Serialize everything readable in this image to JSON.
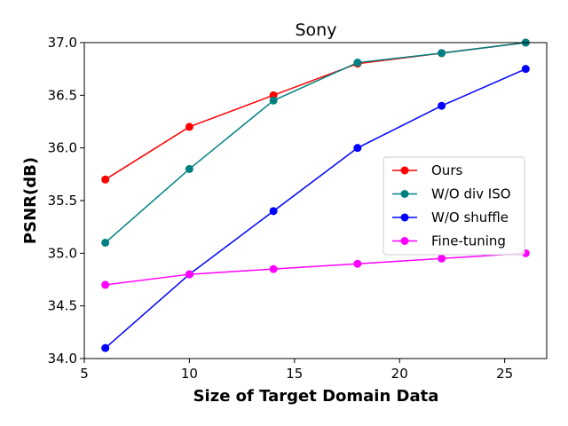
{
  "chart_data": {
    "type": "line",
    "title": "Sony",
    "xlabel": "Size of Target Domain Data",
    "ylabel": "PSNR(dB)",
    "xlim": [
      5,
      27
    ],
    "ylim": [
      34.0,
      37.0
    ],
    "xticks": [
      "5",
      "10",
      "15",
      "20",
      "25"
    ],
    "yticks": [
      "34.0",
      "34.5",
      "35.0",
      "35.5",
      "36.0",
      "36.5",
      "37.0"
    ],
    "grid": false,
    "legend_position": "center-right",
    "x": [
      6,
      10,
      14,
      18,
      22,
      26
    ],
    "series": [
      {
        "name": "Ours",
        "color": "#ff0000",
        "values": [
          35.7,
          36.2,
          36.5,
          36.8,
          36.9,
          37.0
        ]
      },
      {
        "name": "W/O div ISO",
        "color": "#008080",
        "values": [
          35.1,
          35.8,
          36.45,
          36.81,
          36.9,
          37.0
        ]
      },
      {
        "name": "W/O shuffle",
        "color": "#0000ff",
        "values": [
          34.1,
          34.8,
          35.4,
          36.0,
          36.4,
          36.75
        ]
      },
      {
        "name": "Fine-tuning",
        "color": "#ff00ff",
        "values": [
          34.7,
          34.8,
          34.85,
          34.9,
          34.95,
          35.0
        ]
      }
    ]
  }
}
